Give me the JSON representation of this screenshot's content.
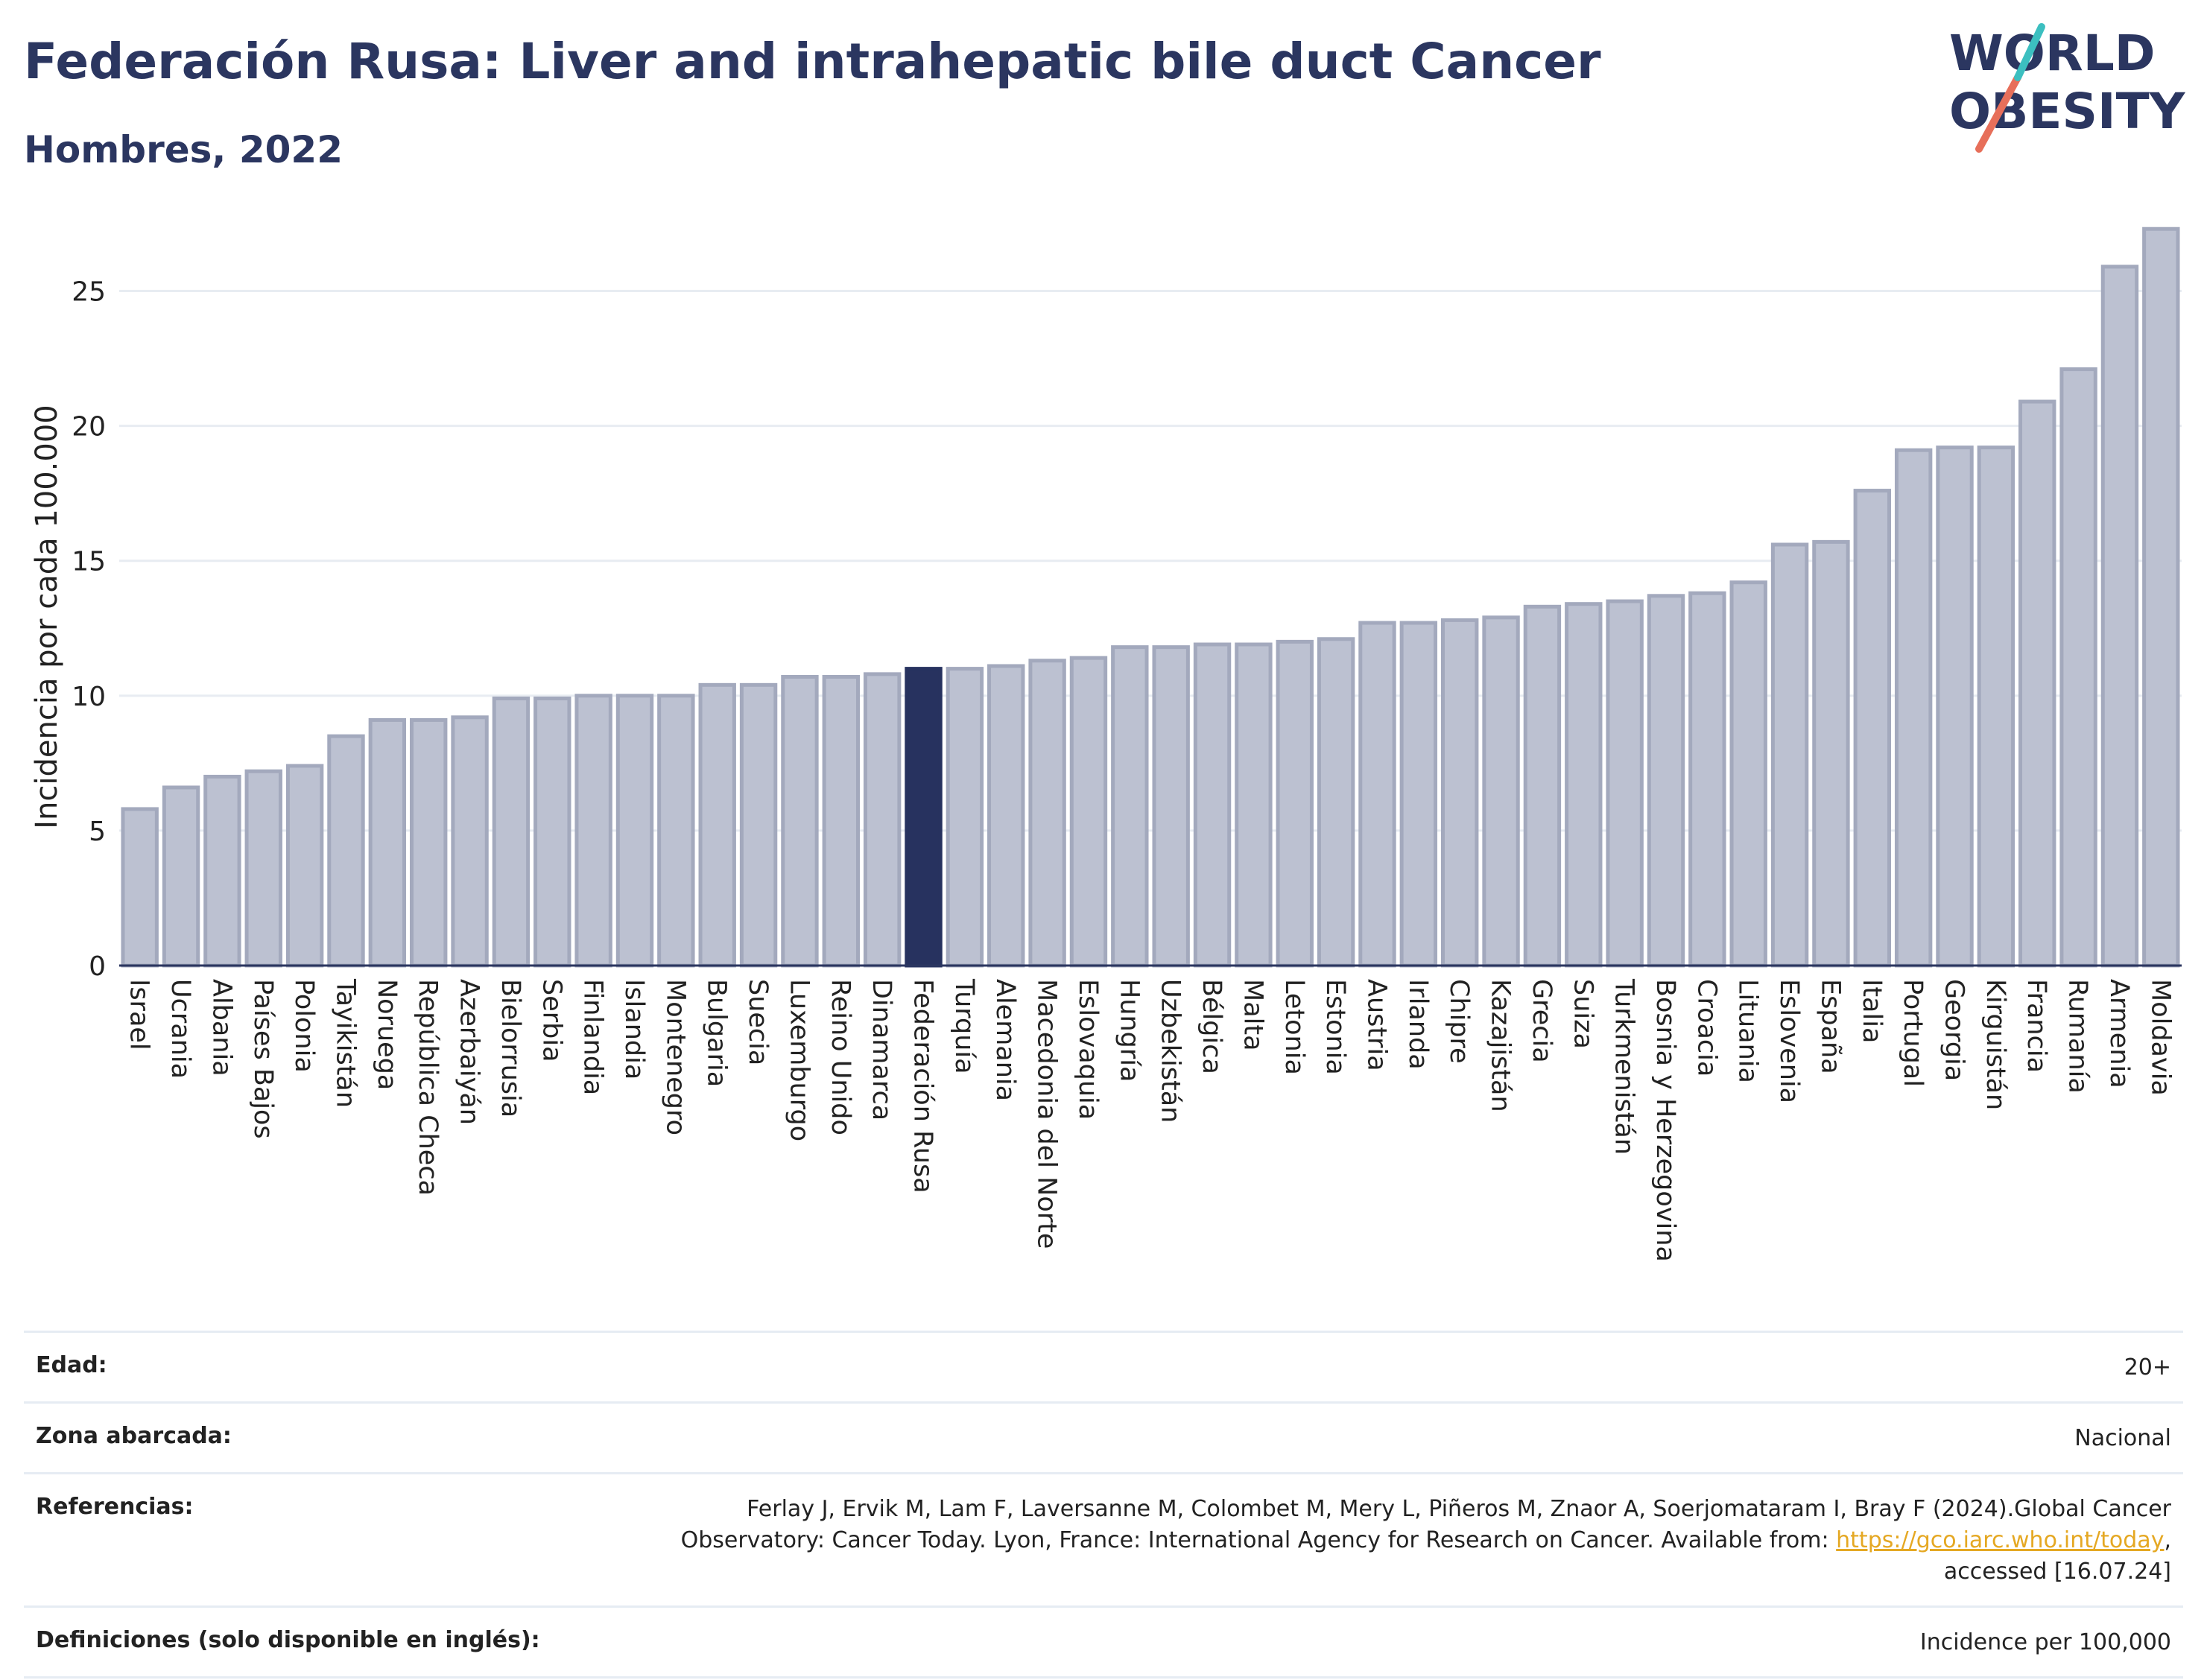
{
  "header": {
    "title": "Federación Rusa: Liver and intrahepatic bile duct Cancer",
    "subtitle": "Hombres, 2022"
  },
  "logo": {
    "line1": "WORLD",
    "line2": "OBESITY"
  },
  "colors": {
    "title": "#2b3660",
    "bar": "#bcc1d1",
    "bar_stroke": "#a3a9bd",
    "highlight": "#27325f",
    "link": "#e5a823"
  },
  "chart_data": {
    "type": "bar",
    "ylabel": "Incidencia por cada 100.000",
    "ylim": [
      0,
      27.5
    ],
    "yticks": [
      0,
      5,
      10,
      15,
      20,
      25
    ],
    "grid": true,
    "highlight": "Federación Rusa",
    "categories": [
      "Israel",
      "Ucrania",
      "Albania",
      "Países Bajos",
      "Polonia",
      "Tayikistán",
      "Noruega",
      "República Checa",
      "Azerbaiyán",
      "Bielorrusia",
      "Serbia",
      "Finlandia",
      "Islandia",
      "Montenegro",
      "Bulgaria",
      "Suecia",
      "Luxemburgo",
      "Reino Unido",
      "Dinamarca",
      "Federación Rusa",
      "Turquía",
      "Alemania",
      "Macedonia del Norte",
      "Eslovaquia",
      "Hungría",
      "Uzbekistán",
      "Bélgica",
      "Malta",
      "Letonia",
      "Estonia",
      "Austria",
      "Irlanda",
      "Chipre",
      "Kazajistán",
      "Grecia",
      "Suiza",
      "Turkmenistán",
      "Bosnia y Herzegovina",
      "Croacia",
      "Lituania",
      "Eslovenia",
      "España",
      "Italia",
      "Portugal",
      "Georgia",
      "Kirguistán",
      "Francia",
      "Rumanía",
      "Armenia",
      "Moldavia"
    ],
    "values": [
      5.8,
      6.6,
      7.0,
      7.2,
      7.4,
      8.5,
      9.1,
      9.1,
      9.2,
      9.9,
      9.9,
      10.0,
      10.0,
      10.0,
      10.4,
      10.4,
      10.7,
      10.7,
      10.8,
      11.0,
      11.0,
      11.1,
      11.3,
      11.4,
      11.8,
      11.8,
      11.9,
      11.9,
      12.0,
      12.1,
      12.7,
      12.7,
      12.8,
      12.9,
      13.3,
      13.4,
      13.5,
      13.7,
      13.8,
      14.2,
      15.6,
      15.7,
      17.6,
      19.1,
      19.2,
      19.2,
      20.9,
      22.1,
      25.9,
      27.3
    ]
  },
  "info": {
    "edad_label": "Edad:",
    "edad_value": "20+",
    "zona_label": "Zona abarcada:",
    "zona_value": "Nacional",
    "ref_label": "Referencias:",
    "ref_text_1": "Ferlay J, Ervik M, Lam F, Laversanne M, Colombet M, Mery L, Piñeros M, Znaor A, Soerjomataram I, Bray F (2024).Global Cancer Observatory: Cancer Today. Lyon, France: International Agency for Research on Cancer. Available from: ",
    "ref_link": "https://gco.iarc.who.int/today",
    "ref_text_2": ", accessed [16.07.24]",
    "def_label": "Definiciones (solo disponible en inglés):",
    "def_value": "Incidence per 100,000"
  }
}
